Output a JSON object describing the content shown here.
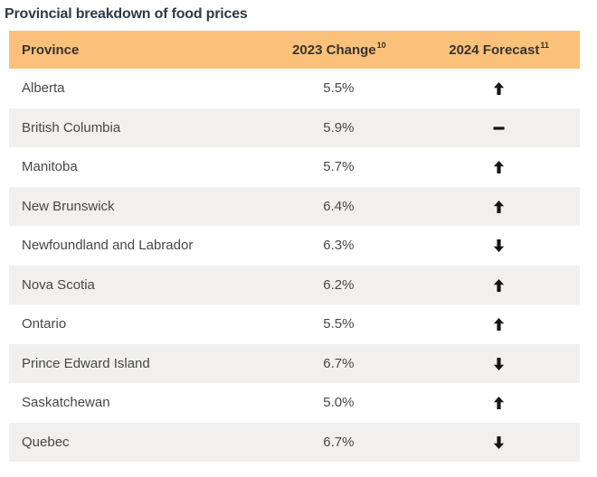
{
  "title": "Provincial breakdown of food prices",
  "table": {
    "columns": [
      {
        "label": "Province",
        "sup": ""
      },
      {
        "label": "2023 Change",
        "sup": "10"
      },
      {
        "label": "2024 Forecast",
        "sup": "11"
      }
    ],
    "rows": [
      {
        "province": "Alberta",
        "change": "5.5%",
        "forecast": "up"
      },
      {
        "province": "British Columbia",
        "change": "5.9%",
        "forecast": "flat"
      },
      {
        "province": "Manitoba",
        "change": "5.7%",
        "forecast": "up"
      },
      {
        "province": "New Brunswick",
        "change": "6.4%",
        "forecast": "up"
      },
      {
        "province": "Newfoundland and Labrador",
        "change": "6.3%",
        "forecast": "down"
      },
      {
        "province": "Nova Scotia",
        "change": "6.2%",
        "forecast": "up"
      },
      {
        "province": "Ontario",
        "change": "5.5%",
        "forecast": "up"
      },
      {
        "province": "Prince Edward Island",
        "change": "6.7%",
        "forecast": "down"
      },
      {
        "province": "Saskatchewan",
        "change": "5.0%",
        "forecast": "up"
      },
      {
        "province": "Quebec",
        "change": "6.7%",
        "forecast": "down"
      }
    ]
  },
  "icons": {
    "up": "up-arrow-icon",
    "down": "down-arrow-icon",
    "flat": "dash-icon"
  },
  "colors": {
    "header_bg": "#FBC17B",
    "alt_row_bg": "#F1F0EF",
    "title_text": "#2E3A46",
    "header_text": "#38332C",
    "body_text": "#474747",
    "trend_icon": "#141414"
  }
}
